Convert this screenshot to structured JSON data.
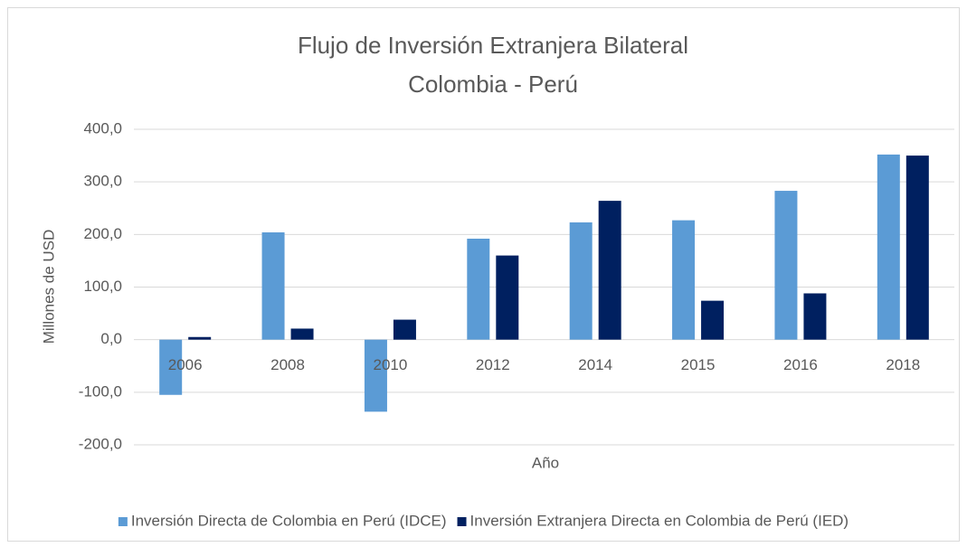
{
  "chart_data": {
    "type": "bar",
    "title": "Flujo de Inversión Extranjera Bilateral",
    "subtitle": "Colombia - Perú",
    "x_label": "Año",
    "y_label": "Millones de USD",
    "categories": [
      "2006",
      "2008",
      "2010",
      "2012",
      "2014",
      "2015",
      "2016",
      "2018"
    ],
    "series": [
      {
        "name": "Inversión Directa de Colombia en Perú (IDCE)",
        "color": "#5b9bd5",
        "values": [
          -105,
          204,
          -137,
          192,
          223,
          227,
          283,
          352
        ]
      },
      {
        "name": "Inversión Extranjera Directa en Colombia de Perú (IED)",
        "color": "#002060",
        "values": [
          5,
          21,
          38,
          160,
          264,
          74,
          88,
          350
        ]
      }
    ],
    "ylim": [
      -200,
      400
    ],
    "yticks": [
      {
        "value": -200,
        "label": "-200,0"
      },
      {
        "value": -100,
        "label": "-100,0"
      },
      {
        "value": 0,
        "label": "0,0"
      },
      {
        "value": 100,
        "label": "100,0"
      },
      {
        "value": 200,
        "label": "200,0"
      },
      {
        "value": 300,
        "label": "300,0"
      },
      {
        "value": 400,
        "label": "400,0"
      }
    ],
    "grid": true,
    "legend": "bottom"
  }
}
